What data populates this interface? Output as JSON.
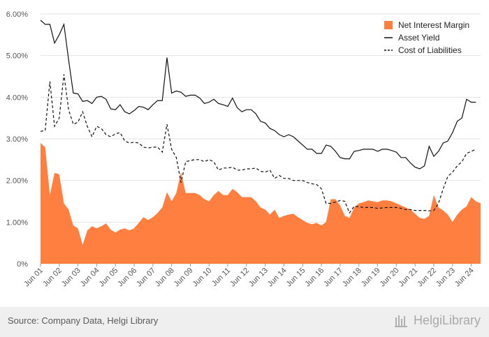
{
  "chart_data": {
    "type": "area",
    "y_ticks": [
      "0%",
      "1.00%",
      "2.00%",
      "3.00%",
      "4.00%",
      "5.00%",
      "6.00%"
    ],
    "ylim": [
      0,
      6
    ],
    "y_unit": "%",
    "x_tick_labels": [
      "Jun 01",
      "Jun 02",
      "Jun 03",
      "Jun 04",
      "Jun 05",
      "Jun 06",
      "Jun 07",
      "Jun 08",
      "Jun 09",
      "Jun 10",
      "Jun 11",
      "Jun 12",
      "Jun 13",
      "Jun 14",
      "Jun 15",
      "Jun 16",
      "Jun 17",
      "Jun 18",
      "Jun 19",
      "Jun 20",
      "Jun 21",
      "Jun 22",
      "Jun 23",
      "Jun 24"
    ],
    "x_start_label": "Jun 01",
    "x_frequency": "quarterly",
    "legend_position": "top-right",
    "grid": true,
    "series": [
      {
        "name": "Net Interest Margin",
        "style": "area",
        "color": "#ff7f41",
        "values": [
          2.9,
          2.8,
          1.65,
          2.18,
          2.15,
          1.45,
          1.3,
          0.92,
          0.85,
          0.45,
          0.8,
          0.9,
          0.85,
          0.9,
          0.97,
          0.82,
          0.75,
          0.82,
          0.85,
          0.8,
          0.85,
          0.98,
          1.12,
          1.05,
          1.12,
          1.22,
          1.35,
          1.72,
          1.5,
          1.7,
          2.2,
          1.7,
          1.7,
          1.7,
          1.65,
          1.55,
          1.5,
          1.65,
          1.75,
          1.65,
          1.65,
          1.8,
          1.72,
          1.6,
          1.6,
          1.6,
          1.5,
          1.35,
          1.3,
          1.18,
          1.3,
          1.1,
          1.15,
          1.18,
          1.2,
          1.12,
          1.05,
          0.98,
          0.95,
          0.98,
          0.92,
          1.0,
          1.55,
          1.55,
          1.4,
          1.15,
          1.1,
          1.35,
          1.45,
          1.48,
          1.52,
          1.5,
          1.48,
          1.52,
          1.52,
          1.5,
          1.45,
          1.4,
          1.35,
          1.3,
          1.2,
          1.1,
          1.08,
          1.15,
          1.65,
          1.35,
          1.28,
          1.18,
          1.0,
          1.18,
          1.3,
          1.38,
          1.6,
          1.5,
          1.45
        ]
      },
      {
        "name": "Asset Yield",
        "style": "solid",
        "color": "#111111",
        "values": [
          5.85,
          5.75,
          5.75,
          5.3,
          5.5,
          5.75,
          4.9,
          4.1,
          4.08,
          3.9,
          3.92,
          3.85,
          4.0,
          4.02,
          3.95,
          3.72,
          3.7,
          3.82,
          3.65,
          3.6,
          3.68,
          3.78,
          3.76,
          3.7,
          3.82,
          3.92,
          3.92,
          4.95,
          4.1,
          4.15,
          4.12,
          4.02,
          4.05,
          4.05,
          3.98,
          3.85,
          3.88,
          3.95,
          3.85,
          3.82,
          3.78,
          3.98,
          3.75,
          3.65,
          3.7,
          3.7,
          3.6,
          3.42,
          3.38,
          3.25,
          3.2,
          3.1,
          3.05,
          3.1,
          3.05,
          2.95,
          2.85,
          2.75,
          2.75,
          2.65,
          2.65,
          2.85,
          2.82,
          2.7,
          2.55,
          2.52,
          2.52,
          2.7,
          2.72,
          2.75,
          2.75,
          2.75,
          2.7,
          2.75,
          2.75,
          2.72,
          2.68,
          2.55,
          2.55,
          2.42,
          2.32,
          2.28,
          2.35,
          2.82,
          2.58,
          2.7,
          2.9,
          2.95,
          3.15,
          3.42,
          3.5,
          3.95,
          3.88,
          3.88
        ]
      },
      {
        "name": "Cost of Liabilities",
        "style": "dashed",
        "color": "#111111",
        "values": [
          3.18,
          3.2,
          4.38,
          3.3,
          3.5,
          4.55,
          3.7,
          3.35,
          3.4,
          3.65,
          3.3,
          3.05,
          3.3,
          3.25,
          3.1,
          3.05,
          3.12,
          3.15,
          2.95,
          2.9,
          2.92,
          2.9,
          2.8,
          2.78,
          2.8,
          2.8,
          2.68,
          3.35,
          2.75,
          2.55,
          1.95,
          2.45,
          2.48,
          2.5,
          2.5,
          2.45,
          2.5,
          2.45,
          2.25,
          2.3,
          2.3,
          2.32,
          2.25,
          2.25,
          2.28,
          2.28,
          2.3,
          2.22,
          2.2,
          2.25,
          2.05,
          2.12,
          2.05,
          2.05,
          2.0,
          2.0,
          2.0,
          1.95,
          1.92,
          1.9,
          1.8,
          1.45,
          1.45,
          1.48,
          1.52,
          1.5,
          1.22,
          1.38,
          1.37,
          1.35,
          1.35,
          1.35,
          1.33,
          1.34,
          1.35,
          1.35,
          1.35,
          1.33,
          1.3,
          1.3,
          1.28,
          1.28,
          1.28,
          1.27,
          1.28,
          1.45,
          1.8,
          2.1,
          2.2,
          2.35,
          2.45,
          2.65,
          2.7,
          2.75
        ]
      }
    ]
  },
  "footer": {
    "source_text": "Source: Company Data, Helgi Library",
    "brand_text": "HelgiLibrary"
  }
}
